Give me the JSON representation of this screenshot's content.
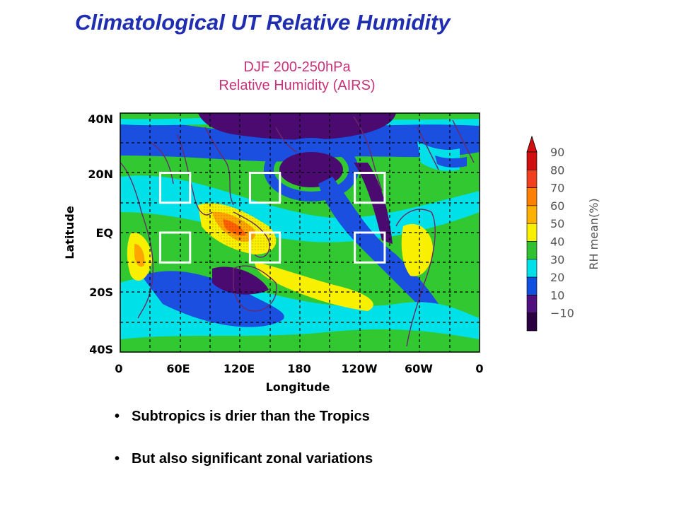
{
  "slide": {
    "title": "Climatological UT Relative Humidity",
    "subtitle_line1": "DJF 200-250hPa",
    "subtitle_line2": "Relative Humidity (AIRS)",
    "bullets": [
      "Subtropics is drier than the Tropics",
      "But also significant zonal variations"
    ]
  },
  "map": {
    "y_axis_label": "Latitude",
    "x_axis_label": "Longitude",
    "lat_ticks": [
      "40N",
      "20N",
      "EQ",
      "20S",
      "40S"
    ],
    "lon_ticks": [
      "0",
      "60E",
      "120E",
      "180",
      "120W",
      "60W",
      "0"
    ],
    "lat_range": [
      -40,
      40
    ],
    "lon_range": [
      0,
      360
    ],
    "highlight_boxes": [
      {
        "lon": [
          40,
          70
        ],
        "lat": [
          10,
          20
        ]
      },
      {
        "lon": [
          130,
          160
        ],
        "lat": [
          10,
          20
        ]
      },
      {
        "lon": [
          235,
          265
        ],
        "lat": [
          10,
          20
        ]
      },
      {
        "lon": [
          40,
          70
        ],
        "lat": [
          -10,
          0
        ]
      },
      {
        "lon": [
          130,
          160
        ],
        "lat": [
          -10,
          0
        ]
      },
      {
        "lon": [
          235,
          265
        ],
        "lat": [
          -10,
          0
        ]
      }
    ],
    "colorbar": {
      "label": "RH mean(%)",
      "tick_labels": [
        "90",
        "80",
        "70",
        "60",
        "50",
        "40",
        "30",
        "20",
        "10",
        "−10"
      ],
      "colors": [
        "#d01010",
        "#f04020",
        "#ff8000",
        "#ffb000",
        "#f8f000",
        "#30c030",
        "#00e0e8",
        "#1050e0",
        "#501080",
        "#2a0040"
      ]
    },
    "field_colors": {
      "very_dry": "#4a0a70",
      "dry": "#1a4fe0",
      "moderate": "#00e0e8",
      "moist": "#32c832",
      "wet": "#f8f000",
      "very_wet": "#ffa500",
      "wettest": "#ff6000"
    }
  }
}
